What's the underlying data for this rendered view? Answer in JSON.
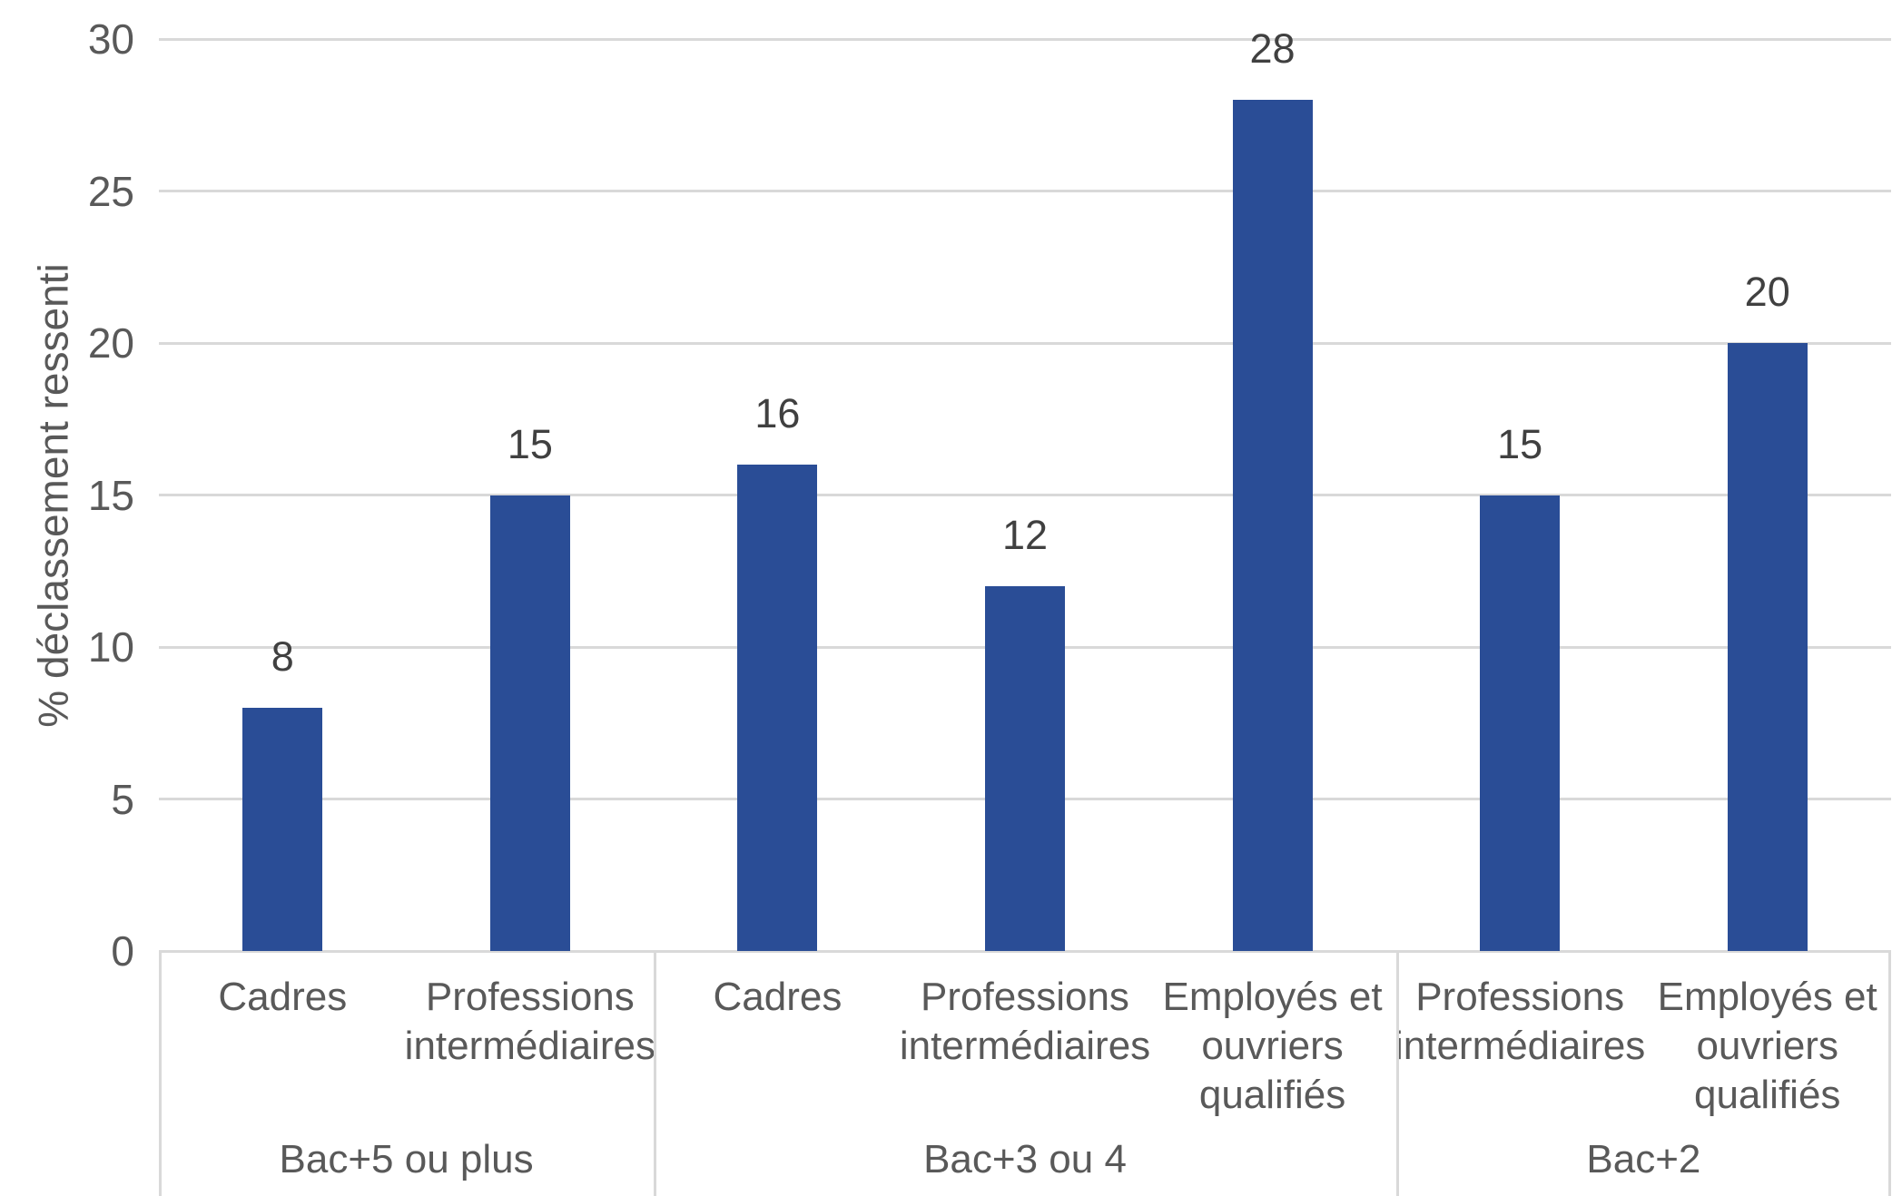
{
  "chart_data": {
    "type": "bar",
    "title": "",
    "ylabel": "% déclassement ressenti",
    "xlabel": "",
    "ylim": [
      0,
      30
    ],
    "yticks": [
      0,
      5,
      10,
      15,
      20,
      25,
      30
    ],
    "grid": "horizontal",
    "legend": "none",
    "groups": [
      {
        "label": "Bac+5 ou plus",
        "categories": [
          "Cadres",
          "Professions intermédiaires"
        ],
        "values": [
          8,
          15
        ]
      },
      {
        "label": "Bac+3 ou 4",
        "categories": [
          "Cadres",
          "Professions intermédiaires",
          "Employés et ouvriers qualifiés"
        ],
        "values": [
          16,
          12,
          28
        ]
      },
      {
        "label": "Bac+2",
        "categories": [
          "Professions intermédiaires",
          "Employés et ouvriers qualifiés"
        ],
        "values": [
          15,
          20
        ]
      }
    ]
  },
  "colors": {
    "bar": "#2A4D96",
    "gridline": "#D9D9D9",
    "table_border": "#D9D9D9",
    "axis_text": "#595959",
    "data_label": "#404040"
  }
}
